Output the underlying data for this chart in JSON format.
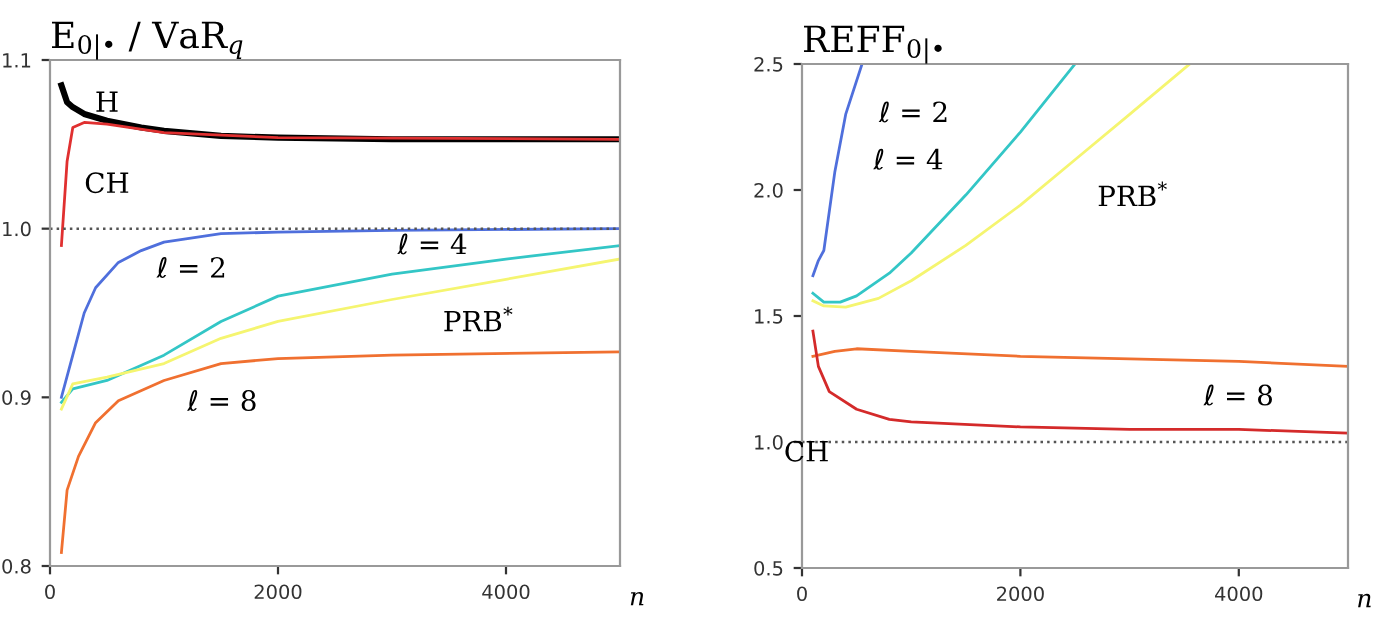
{
  "chart_data": [
    {
      "type": "line",
      "title": "E$_{0|•}$ / VaR$_{q}$",
      "xlabel": "n",
      "xlim": [
        0,
        5000
      ],
      "xticks": [
        0,
        2000,
        4000
      ],
      "ylim": [
        0.8,
        1.1
      ],
      "yticks": [
        {
          "value": 0.8,
          "label": "0.8"
        },
        {
          "value": 0.9,
          "label": "0.9"
        },
        {
          "value": 1.0,
          "label": "1.0"
        },
        {
          "value": 1.1,
          "label": "1.1"
        }
      ],
      "grid": false,
      "legend": false,
      "marker": "none",
      "line_style": "solid",
      "ref_lines": [
        {
          "axis": "y",
          "value": 1.0,
          "color": "#555555",
          "line_style": "dotted"
        }
      ],
      "series": [
        {
          "name": "H",
          "color": "#000000",
          "x": [
            100,
            150,
            200,
            300,
            500,
            800,
            1000,
            1500,
            2000,
            3000,
            5000
          ],
          "values": [
            1.085,
            1.075,
            1.072,
            1.068,
            1.064,
            1.06,
            1.058,
            1.055,
            1.054,
            1.053,
            1.053
          ]
        },
        {
          "name": "CH",
          "color": "#e03030",
          "x": [
            100,
            150,
            200,
            300,
            500,
            1000,
            2000,
            5000
          ],
          "values": [
            0.99,
            1.04,
            1.06,
            1.063,
            1.062,
            1.057,
            1.054,
            1.053
          ]
        },
        {
          "name": "ℓ = 2",
          "color": "#4f6fdc",
          "x": [
            100,
            200,
            300,
            400,
            600,
            800,
            1000,
            1500,
            2000,
            3000,
            5000
          ],
          "values": [
            0.9,
            0.925,
            0.95,
            0.965,
            0.98,
            0.987,
            0.992,
            0.997,
            0.998,
            0.999,
            1.0
          ]
        },
        {
          "name": "ℓ = 4",
          "color": "#33c6c6",
          "x": [
            100,
            200,
            500,
            1000,
            1500,
            2000,
            3000,
            4000,
            5000
          ],
          "values": [
            0.897,
            0.905,
            0.91,
            0.925,
            0.945,
            0.96,
            0.973,
            0.982,
            0.99
          ]
        },
        {
          "name": "PRB$^{*}$",
          "color": "#f5f570",
          "x": [
            100,
            200,
            500,
            1000,
            1500,
            2000,
            3000,
            4000,
            5000
          ],
          "values": [
            0.893,
            0.908,
            0.912,
            0.92,
            0.935,
            0.945,
            0.958,
            0.97,
            0.982
          ]
        },
        {
          "name": "ℓ = 8",
          "color": "#f07030",
          "x": [
            100,
            150,
            250,
            400,
            600,
            1000,
            1500,
            2000,
            3000,
            5000
          ],
          "values": [
            0.808,
            0.845,
            0.865,
            0.885,
            0.898,
            0.91,
            0.92,
            0.923,
            0.925,
            0.927
          ]
        }
      ]
    },
    {
      "type": "line",
      "title": "REFF$_{0|•}$",
      "xlabel": "n",
      "xlim": [
        0,
        5000
      ],
      "xticks": [
        0,
        2000,
        4000
      ],
      "ylim": [
        0.5,
        2.5
      ],
      "yticks": [
        {
          "value": 0.5,
          "label": "0.5"
        },
        {
          "value": 1.0,
          "label": "1.0"
        },
        {
          "value": 1.5,
          "label": "1.5"
        },
        {
          "value": 2.0,
          "label": "2.0"
        },
        {
          "value": 2.5,
          "label": "2.5"
        }
      ],
      "grid": false,
      "legend": false,
      "marker": "none",
      "line_style": "solid",
      "ref_lines": [
        {
          "axis": "y",
          "value": 1.0,
          "color": "#555555",
          "line_style": "dotted"
        }
      ],
      "series": [
        {
          "name": "ℓ = 2",
          "color": "#4f6fdc",
          "x": [
            100,
            150,
            200,
            300,
            400,
            550
          ],
          "values": [
            1.66,
            1.72,
            1.76,
            2.07,
            2.3,
            2.5
          ]
        },
        {
          "name": "ℓ = 4",
          "color": "#33c6c6",
          "x": [
            100,
            200,
            350,
            500,
            800,
            1000,
            1500,
            2000,
            2500
          ],
          "values": [
            1.59,
            1.555,
            1.555,
            1.58,
            1.67,
            1.75,
            1.98,
            2.23,
            2.5
          ]
        },
        {
          "name": "PRB$^{*}$",
          "color": "#f5f570",
          "x": [
            100,
            200,
            400,
            700,
            1000,
            1500,
            2000,
            2500,
            3000,
            3550
          ],
          "values": [
            1.56,
            1.54,
            1.535,
            1.57,
            1.64,
            1.78,
            1.94,
            2.12,
            2.3,
            2.5
          ]
        },
        {
          "name": "ℓ = 8",
          "color": "#f07030",
          "x": [
            100,
            300,
            500,
            1000,
            2000,
            3000,
            4000,
            5000
          ],
          "values": [
            1.34,
            1.36,
            1.37,
            1.36,
            1.34,
            1.33,
            1.32,
            1.3
          ]
        },
        {
          "name": "CH",
          "color": "#d42a2a",
          "x": [
            100,
            150,
            250,
            500,
            800,
            1000,
            2000,
            3000,
            4000,
            5000
          ],
          "values": [
            1.44,
            1.3,
            1.2,
            1.13,
            1.09,
            1.08,
            1.06,
            1.05,
            1.05,
            1.035
          ]
        }
      ]
    }
  ]
}
